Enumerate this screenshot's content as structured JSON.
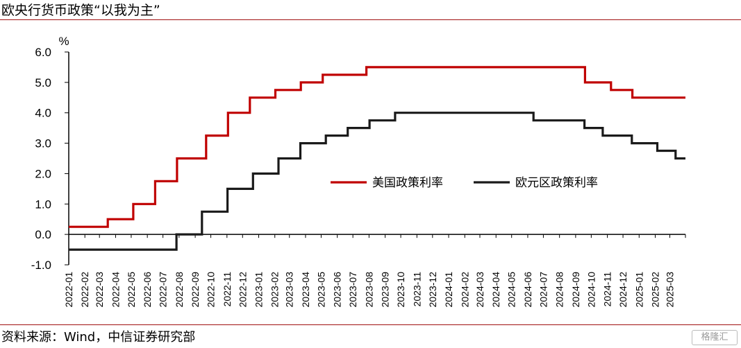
{
  "title": "欧央行货币政策“以我为主”",
  "source": "资料来源：Wind，中信证券研究部",
  "watermark": "格隆汇",
  "chart_data": {
    "type": "line",
    "unit": "%",
    "ylim": [
      -1.0,
      6.0
    ],
    "y_ticks": [
      "6.0",
      "5.0",
      "4.0",
      "3.0",
      "2.0",
      "1.0",
      "0.0",
      "-1.0"
    ],
    "categories": [
      "2022-01",
      "2022-02",
      "2022-03",
      "2022-04",
      "2022-05",
      "2022-06",
      "2022-07",
      "2022-08",
      "2022-09",
      "2022-10",
      "2022-11",
      "2022-12",
      "2023-01",
      "2023-02",
      "2023-03",
      "2023-04",
      "2023-05",
      "2023-06",
      "2023-07",
      "2023-08",
      "2023-09",
      "2023-10",
      "2023-11",
      "2023-12",
      "2024-01",
      "2024-02",
      "2024-03",
      "2024-04",
      "2024-05",
      "2024-06",
      "2024-07",
      "2024-08",
      "2024-09",
      "2024-10",
      "2024-11",
      "2024-12",
      "2025-01",
      "2025-02",
      "2025-03"
    ],
    "legend_position": "center-right",
    "series": [
      {
        "name": "美国政策利率",
        "color": "#c00000",
        "steps": [
          {
            "date": "2022-01-01",
            "value": 0.25
          },
          {
            "date": "2022-03-17",
            "value": 0.5
          },
          {
            "date": "2022-05-05",
            "value": 1.0
          },
          {
            "date": "2022-06-16",
            "value": 1.75
          },
          {
            "date": "2022-07-28",
            "value": 2.5
          },
          {
            "date": "2022-09-22",
            "value": 3.25
          },
          {
            "date": "2022-11-03",
            "value": 4.0
          },
          {
            "date": "2022-12-15",
            "value": 4.5
          },
          {
            "date": "2023-02-02",
            "value": 4.75
          },
          {
            "date": "2023-03-23",
            "value": 5.0
          },
          {
            "date": "2023-05-04",
            "value": 5.25
          },
          {
            "date": "2023-07-27",
            "value": 5.5
          },
          {
            "date": "2024-09-19",
            "value": 5.0
          },
          {
            "date": "2024-11-08",
            "value": 4.75
          },
          {
            "date": "2024-12-19",
            "value": 4.5
          }
        ],
        "end_date": "2025-03-31"
      },
      {
        "name": "欧元区政策利率",
        "color": "#1a1a1a",
        "steps": [
          {
            "date": "2022-01-01",
            "value": -0.5
          },
          {
            "date": "2022-07-27",
            "value": 0.0
          },
          {
            "date": "2022-09-14",
            "value": 0.75
          },
          {
            "date": "2022-11-02",
            "value": 1.5
          },
          {
            "date": "2022-12-21",
            "value": 2.0
          },
          {
            "date": "2023-02-08",
            "value": 2.5
          },
          {
            "date": "2023-03-22",
            "value": 3.0
          },
          {
            "date": "2023-05-10",
            "value": 3.25
          },
          {
            "date": "2023-06-21",
            "value": 3.5
          },
          {
            "date": "2023-08-02",
            "value": 3.75
          },
          {
            "date": "2023-09-20",
            "value": 4.0
          },
          {
            "date": "2024-06-12",
            "value": 3.75
          },
          {
            "date": "2024-09-18",
            "value": 3.5
          },
          {
            "date": "2024-10-23",
            "value": 3.25
          },
          {
            "date": "2024-12-18",
            "value": 3.0
          },
          {
            "date": "2025-02-05",
            "value": 2.75
          },
          {
            "date": "2025-03-12",
            "value": 2.5
          }
        ],
        "end_date": "2025-03-31"
      }
    ]
  }
}
